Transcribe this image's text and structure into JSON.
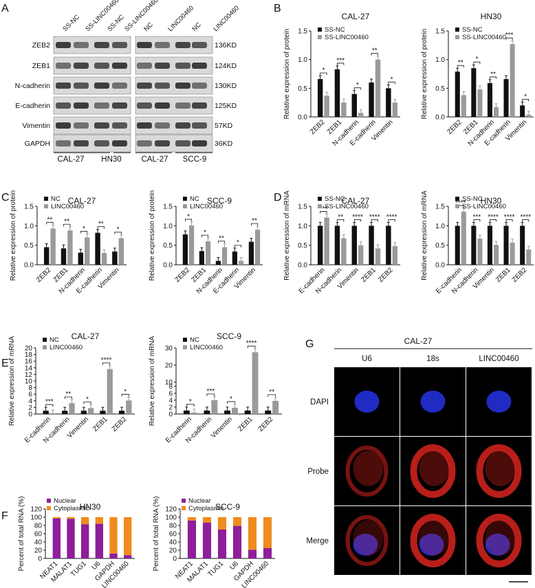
{
  "colors": {
    "black_bar": "#111111",
    "grey_bar": "#9a9a9a",
    "nuclear": "#8e1e9a",
    "cytoplasmic": "#f08c1e",
    "blot_bg": "#d9d9d9",
    "band": "#2a2a2a",
    "dapi": "#2430d8",
    "probe": "#d8231e"
  },
  "panel_letters": [
    "A",
    "B",
    "C",
    "D",
    "E",
    "F",
    "G"
  ],
  "panelA": {
    "lane_labels": [
      "SS-NC",
      "SS-LINC00460",
      "SS-NC",
      "SS-LINC00460",
      "NC",
      "LINC00460",
      "NC",
      "LINC00460"
    ],
    "proteins": [
      "ZEB2",
      "ZEB1",
      "N-cadherin",
      "E-cadherin",
      "Vimentin",
      "GAPDH"
    ],
    "sizes": [
      "136KD",
      "124KD",
      "130KD",
      "125KD",
      "57KD",
      "36KD"
    ],
    "cell_lines": [
      "CAL-27",
      "HN30",
      "CAL-27",
      "SCC-9"
    ]
  },
  "panelG": {
    "cell_line": "CAL-27",
    "columns": [
      "U6",
      "18s",
      "LINC00460"
    ],
    "rows": [
      "DAPI",
      "Probe",
      "Merge"
    ]
  },
  "chart_data": [
    {
      "id": "B1",
      "type": "bar",
      "title": "CAL-27",
      "ylabel": "Relative expression of protein",
      "ylim": [
        0,
        1.5
      ],
      "yticks": [
        "0.0",
        "0.5",
        "1.0",
        "1.5"
      ],
      "categories": [
        "ZEB2",
        "ZEB1",
        "N-cadherin",
        "E-cadherin",
        "Vimentin"
      ],
      "series": [
        {
          "name": "SS-NC",
          "values": [
            0.66,
            0.83,
            0.4,
            0.6,
            0.5
          ]
        },
        {
          "name": "SS-LINC00460",
          "values": [
            0.37,
            0.25,
            0.07,
            1.0,
            0.25
          ]
        }
      ],
      "sig": [
        "*",
        "***",
        "*",
        "**",
        "*"
      ]
    },
    {
      "id": "B2",
      "type": "bar",
      "title": "HN30",
      "ylabel": "Relative expression of protein",
      "ylim": [
        0,
        1.5
      ],
      "yticks": [
        "0.0",
        "0.5",
        "1.0",
        "1.5"
      ],
      "categories": [
        "ZEB2",
        "ZEB1",
        "N-cadherin",
        "E-cadherin",
        "Vimentin"
      ],
      "series": [
        {
          "name": "SS-NC",
          "values": [
            0.79,
            0.85,
            0.59,
            0.66,
            0.2
          ]
        },
        {
          "name": "SS-LINC00460",
          "values": [
            0.38,
            0.48,
            0.17,
            1.27,
            0.04
          ]
        }
      ],
      "sig": [
        "**",
        "*",
        "**",
        "***",
        "*"
      ]
    },
    {
      "id": "C1",
      "type": "bar",
      "title": "CAL-27",
      "ylabel": "Relative expression of protein",
      "ylim": [
        0,
        1.5
      ],
      "yticks": [
        "0.0",
        "0.5",
        "1.0",
        "1.5"
      ],
      "categories": [
        "ZEB2",
        "ZEB1",
        "N-cadherin",
        "E-cadherin",
        "Vimentin"
      ],
      "series": [
        {
          "name": "NC",
          "values": [
            0.45,
            0.42,
            0.31,
            0.82,
            0.34
          ]
        },
        {
          "name": "LINC00460",
          "values": [
            0.93,
            0.88,
            0.7,
            0.3,
            0.68
          ]
        }
      ],
      "sig": [
        "**",
        "**",
        "*",
        "**",
        "*"
      ]
    },
    {
      "id": "C2",
      "type": "bar",
      "title": "SCC-9",
      "ylabel": "Relative expression of protein",
      "ylim": [
        0,
        1.5
      ],
      "yticks": [
        "0.0",
        "0.5",
        "1.0",
        "1.5"
      ],
      "categories": [
        "ZEB2",
        "ZEB1",
        "N-cadherin",
        "E-cadherin",
        "Vimentin"
      ],
      "series": [
        {
          "name": "NC",
          "values": [
            0.78,
            0.35,
            0.1,
            0.34,
            0.59
          ]
        },
        {
          "name": "LINC00460",
          "values": [
            1.01,
            0.6,
            0.45,
            0.1,
            0.9
          ]
        }
      ],
      "sig": [
        "*",
        "*",
        "**",
        "*",
        "**"
      ]
    },
    {
      "id": "D1",
      "type": "bar",
      "title": "CAL-27",
      "ylabel": "Relative expression of mRNA",
      "ylim": [
        0,
        1.5
      ],
      "yticks": [
        "0.0",
        "0.5",
        "1.0",
        "1.5"
      ],
      "categories": [
        "E-cadherin",
        "N-cadherin",
        "Vimentin",
        "ZEB1",
        "ZEB2"
      ],
      "series": [
        {
          "name": "SS-NC",
          "values": [
            1.0,
            1.0,
            1.0,
            1.0,
            1.0
          ]
        },
        {
          "name": "SS-LINC00460",
          "values": [
            1.21,
            0.68,
            0.5,
            0.42,
            0.48
          ]
        }
      ],
      "sig": [
        "***",
        "**",
        "****",
        "****",
        "****"
      ]
    },
    {
      "id": "D2",
      "type": "bar",
      "title": "HN30",
      "ylabel": "Relative expression of mRNA",
      "ylim": [
        0,
        1.5
      ],
      "yticks": [
        "0.0",
        "0.5",
        "1.0",
        "1.5"
      ],
      "categories": [
        "E-cadherin",
        "N-cadherin",
        "Vimentin",
        "ZEB1",
        "ZEB2"
      ],
      "series": [
        {
          "name": "SS-NC",
          "values": [
            1.0,
            1.0,
            1.0,
            1.0,
            1.0
          ]
        },
        {
          "name": "SS-LINC00460",
          "values": [
            1.36,
            0.67,
            0.51,
            0.57,
            0.39
          ]
        }
      ],
      "sig": [
        "****",
        "***",
        "****",
        "****",
        "****"
      ]
    },
    {
      "id": "E1",
      "type": "bar",
      "title": "CAL-27",
      "ylabel": "Relative expression of mRNA",
      "ylim": [
        0,
        20
      ],
      "yticks": [
        "0",
        "2",
        "4",
        "6",
        "8",
        "10",
        "12",
        "14",
        "16",
        "18",
        "20"
      ],
      "categories": [
        "E-cadherin",
        "N-cadherin",
        "Vimentin",
        "ZEB1",
        "ZEB2"
      ],
      "series": [
        {
          "name": "NC",
          "values": [
            1.0,
            1.0,
            1.0,
            1.0,
            1.0
          ]
        },
        {
          "name": "LINC00460",
          "values": [
            0.2,
            3.3,
            1.8,
            13.6,
            4.1
          ]
        }
      ],
      "sig": [
        "***",
        "**",
        "*",
        "****",
        "*"
      ]
    },
    {
      "id": "E2",
      "type": "bar",
      "title": "SCC-9",
      "ylabel": "Relative expression of mRNA",
      "ylim": [
        0,
        30
      ],
      "yticks": [
        "0",
        "2",
        "4",
        "6",
        "8",
        "10",
        "20",
        "30"
      ],
      "broken_axis": true,
      "categories": [
        "E-cadherin",
        "N-cadherin",
        "Vimentin",
        "ZEB1",
        "ZEB2"
      ],
      "series": [
        {
          "name": "NC",
          "values": [
            1.0,
            1.0,
            1.0,
            1.0,
            1.0
          ]
        },
        {
          "name": "LINC00460",
          "values": [
            0.4,
            4.0,
            1.8,
            27.5,
            3.8
          ]
        }
      ],
      "sig": [
        "*",
        "***",
        "*",
        "****",
        "**"
      ]
    },
    {
      "id": "F1",
      "type": "bar",
      "title": "HN30",
      "ylabel": "Percent of total RNA (%)",
      "ylim": [
        0,
        120
      ],
      "yticks": [
        "0",
        "20",
        "40",
        "60",
        "80",
        "100",
        "120"
      ],
      "stacked": true,
      "categories": [
        "NEAT1",
        "MALAT1",
        "TUG1",
        "U6",
        "GAPDH",
        "LINC00460"
      ],
      "series": [
        {
          "name": "Nuclear",
          "values": [
            97,
            96,
            83,
            84,
            12,
            8
          ]
        },
        {
          "name": "Cytoplasmic",
          "values": [
            3,
            4,
            17,
            16,
            88,
            92
          ]
        }
      ]
    },
    {
      "id": "F2",
      "type": "bar",
      "title": "SCC-9",
      "ylabel": "Percent of total RNA (%)",
      "ylim": [
        0,
        120
      ],
      "yticks": [
        "0",
        "20",
        "40",
        "60",
        "80",
        "100",
        "120"
      ],
      "stacked": true,
      "categories": [
        "NEAT1",
        "MALAT1",
        "TUG1",
        "U6",
        "GAPDH",
        "LINC00460"
      ],
      "series": [
        {
          "name": "Nuclear",
          "values": [
            92,
            87,
            70,
            79,
            21,
            25
          ]
        },
        {
          "name": "Cytoplasmic",
          "values": [
            8,
            13,
            30,
            21,
            79,
            75
          ]
        }
      ]
    }
  ]
}
